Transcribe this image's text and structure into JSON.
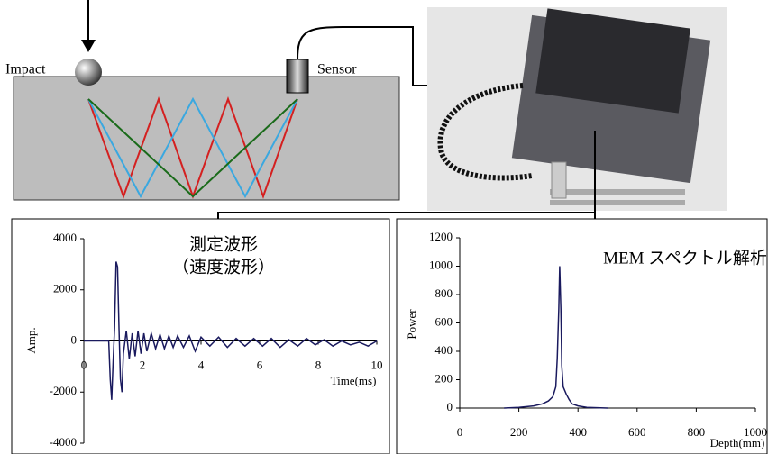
{
  "diagram": {
    "impact_label": "Impact",
    "sensor_label": "Sensor"
  },
  "chart_data": [
    {
      "type": "line",
      "annotations": [
        "測定波形",
        "（速度波形）"
      ],
      "x_label": "Time(ms)",
      "y_label": "Amp.",
      "xlim": [
        0,
        10
      ],
      "ylim": [
        -4000,
        4000
      ],
      "xticks": [
        0,
        2,
        4,
        6,
        8,
        10
      ],
      "yticks": [
        -4000,
        -2000,
        0,
        2000,
        4000
      ],
      "series": [
        {
          "color": "#1a1a5e",
          "x": [
            0,
            0.5,
            0.85,
            0.9,
            0.95,
            1.0,
            1.05,
            1.1,
            1.15,
            1.2,
            1.25,
            1.3,
            1.35,
            1.45,
            1.55,
            1.65,
            1.75,
            1.85,
            1.95,
            2.05,
            2.15,
            2.3,
            2.45,
            2.6,
            2.75,
            2.9,
            3.05,
            3.2,
            3.4,
            3.6,
            3.8,
            4.0,
            4.3,
            4.6,
            4.9,
            5.2,
            5.5,
            5.8,
            6.1,
            6.4,
            6.7,
            7.0,
            7.3,
            7.6,
            7.9,
            8.2,
            8.5,
            8.8,
            9.1,
            9.4,
            9.7,
            10
          ],
          "values": [
            0,
            0,
            0,
            -1500,
            -2300,
            -800,
            500,
            3100,
            2900,
            500,
            -1500,
            -2000,
            -500,
            400,
            -700,
            300,
            -600,
            400,
            -500,
            300,
            -400,
            300,
            -300,
            250,
            -300,
            200,
            -250,
            200,
            -250,
            200,
            -400,
            150,
            -200,
            150,
            -250,
            100,
            -200,
            100,
            -200,
            100,
            -250,
            50,
            -200,
            100,
            -150,
            50,
            -200,
            0,
            -150,
            -50,
            -200,
            0
          ]
        }
      ]
    },
    {
      "type": "line",
      "annotations": [
        "MEM スペクトル解析"
      ],
      "x_label": "Depth(mm)",
      "y_label": "Power",
      "xlim": [
        0,
        1000
      ],
      "ylim": [
        0,
        1200
      ],
      "xticks": [
        0,
        200,
        400,
        600,
        800,
        1000
      ],
      "yticks": [
        0,
        200,
        400,
        600,
        800,
        1000,
        1200
      ],
      "series": [
        {
          "color": "#1a1a5e",
          "x": [
            150,
            200,
            250,
            280,
            300,
            315,
            325,
            330,
            335,
            338,
            342,
            345,
            350,
            360,
            370,
            380,
            400,
            430,
            500
          ],
          "values": [
            0,
            5,
            15,
            30,
            50,
            80,
            150,
            350,
            700,
            1000,
            700,
            300,
            150,
            100,
            60,
            30,
            15,
            5,
            0
          ]
        }
      ]
    }
  ]
}
